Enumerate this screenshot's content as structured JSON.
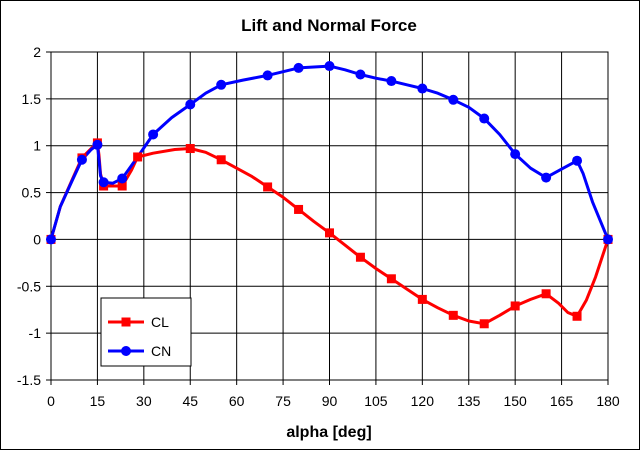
{
  "chart_data": {
    "type": "line",
    "title": "Lift and Normal Force",
    "xlabel": "alpha [deg]",
    "ylabel": "",
    "xlim": [
      0,
      180
    ],
    "ylim": [
      -1.5,
      2
    ],
    "x_ticks": [
      0,
      15,
      30,
      45,
      60,
      75,
      90,
      105,
      120,
      135,
      150,
      165,
      180
    ],
    "y_ticks": [
      -1.5,
      -1,
      -0.5,
      0,
      0.5,
      1,
      1.5,
      2
    ],
    "x_tick_labels": [
      "0",
      "15",
      "30",
      "45",
      "60",
      "75",
      "90",
      "105",
      "120",
      "135",
      "150",
      "165",
      "180"
    ],
    "y_tick_labels": [
      "-1.5",
      "-1",
      "-0.5",
      "0",
      "0.5",
      "1",
      "1.5",
      "2"
    ],
    "grid": true,
    "legend_position": "bottom-left",
    "series": [
      {
        "name": "CL",
        "color": "#ff0000",
        "marker": "square",
        "markers": [
          [
            0,
            0
          ],
          [
            10,
            0.87
          ],
          [
            15,
            1.03
          ],
          [
            17,
            0.57
          ],
          [
            23,
            0.57
          ],
          [
            28,
            0.88
          ],
          [
            45,
            0.97
          ],
          [
            55,
            0.85
          ],
          [
            70,
            0.56
          ],
          [
            80,
            0.32
          ],
          [
            90,
            0.07
          ],
          [
            100,
            -0.19
          ],
          [
            110,
            -0.42
          ],
          [
            120,
            -0.64
          ],
          [
            130,
            -0.81
          ],
          [
            140,
            -0.9
          ],
          [
            150,
            -0.71
          ],
          [
            160,
            -0.58
          ],
          [
            170,
            -0.82
          ],
          [
            180,
            0
          ]
        ],
        "line": [
          [
            0,
            0
          ],
          [
            3,
            0.35
          ],
          [
            7,
            0.65
          ],
          [
            10,
            0.87
          ],
          [
            13,
            0.97
          ],
          [
            15,
            1.03
          ],
          [
            15.5,
            0.9
          ],
          [
            16,
            0.7
          ],
          [
            17,
            0.57
          ],
          [
            23,
            0.57
          ],
          [
            26,
            0.74
          ],
          [
            28,
            0.88
          ],
          [
            33,
            0.92
          ],
          [
            40,
            0.96
          ],
          [
            45,
            0.97
          ],
          [
            50,
            0.93
          ],
          [
            55,
            0.85
          ],
          [
            60,
            0.76
          ],
          [
            65,
            0.67
          ],
          [
            70,
            0.56
          ],
          [
            75,
            0.45
          ],
          [
            80,
            0.32
          ],
          [
            85,
            0.19
          ],
          [
            90,
            0.07
          ],
          [
            95,
            -0.06
          ],
          [
            100,
            -0.19
          ],
          [
            105,
            -0.31
          ],
          [
            110,
            -0.42
          ],
          [
            115,
            -0.53
          ],
          [
            120,
            -0.64
          ],
          [
            125,
            -0.73
          ],
          [
            130,
            -0.81
          ],
          [
            135,
            -0.87
          ],
          [
            140,
            -0.9
          ],
          [
            145,
            -0.81
          ],
          [
            150,
            -0.71
          ],
          [
            155,
            -0.64
          ],
          [
            160,
            -0.58
          ],
          [
            164,
            -0.68
          ],
          [
            167,
            -0.78
          ],
          [
            170,
            -0.82
          ],
          [
            173,
            -0.65
          ],
          [
            176,
            -0.4
          ],
          [
            180,
            0
          ]
        ]
      },
      {
        "name": "CN",
        "color": "#0000ff",
        "marker": "circle",
        "markers": [
          [
            0,
            0
          ],
          [
            10,
            0.85
          ],
          [
            15,
            1.01
          ],
          [
            17,
            0.61
          ],
          [
            23,
            0.65
          ],
          [
            33,
            1.12
          ],
          [
            45,
            1.44
          ],
          [
            55,
            1.65
          ],
          [
            70,
            1.75
          ],
          [
            80,
            1.83
          ],
          [
            90,
            1.85
          ],
          [
            100,
            1.76
          ],
          [
            110,
            1.69
          ],
          [
            120,
            1.61
          ],
          [
            130,
            1.49
          ],
          [
            140,
            1.29
          ],
          [
            150,
            0.91
          ],
          [
            160,
            0.66
          ],
          [
            170,
            0.84
          ],
          [
            180,
            0
          ]
        ],
        "line": [
          [
            0,
            0
          ],
          [
            3,
            0.35
          ],
          [
            7,
            0.64
          ],
          [
            10,
            0.85
          ],
          [
            13,
            0.96
          ],
          [
            15,
            1.01
          ],
          [
            15.5,
            0.85
          ],
          [
            16,
            0.68
          ],
          [
            17,
            0.61
          ],
          [
            20,
            0.6
          ],
          [
            23,
            0.65
          ],
          [
            28,
            0.88
          ],
          [
            33,
            1.12
          ],
          [
            39,
            1.3
          ],
          [
            45,
            1.44
          ],
          [
            50,
            1.56
          ],
          [
            55,
            1.65
          ],
          [
            62,
            1.7
          ],
          [
            70,
            1.75
          ],
          [
            75,
            1.79
          ],
          [
            80,
            1.83
          ],
          [
            85,
            1.84
          ],
          [
            90,
            1.85
          ],
          [
            95,
            1.81
          ],
          [
            100,
            1.76
          ],
          [
            105,
            1.72
          ],
          [
            110,
            1.69
          ],
          [
            115,
            1.65
          ],
          [
            120,
            1.61
          ],
          [
            125,
            1.56
          ],
          [
            130,
            1.49
          ],
          [
            135,
            1.41
          ],
          [
            140,
            1.29
          ],
          [
            145,
            1.12
          ],
          [
            150,
            0.91
          ],
          [
            155,
            0.76
          ],
          [
            160,
            0.66
          ],
          [
            165,
            0.75
          ],
          [
            170,
            0.84
          ],
          [
            172,
            0.7
          ],
          [
            175,
            0.4
          ],
          [
            180,
            0
          ]
        ]
      }
    ]
  }
}
